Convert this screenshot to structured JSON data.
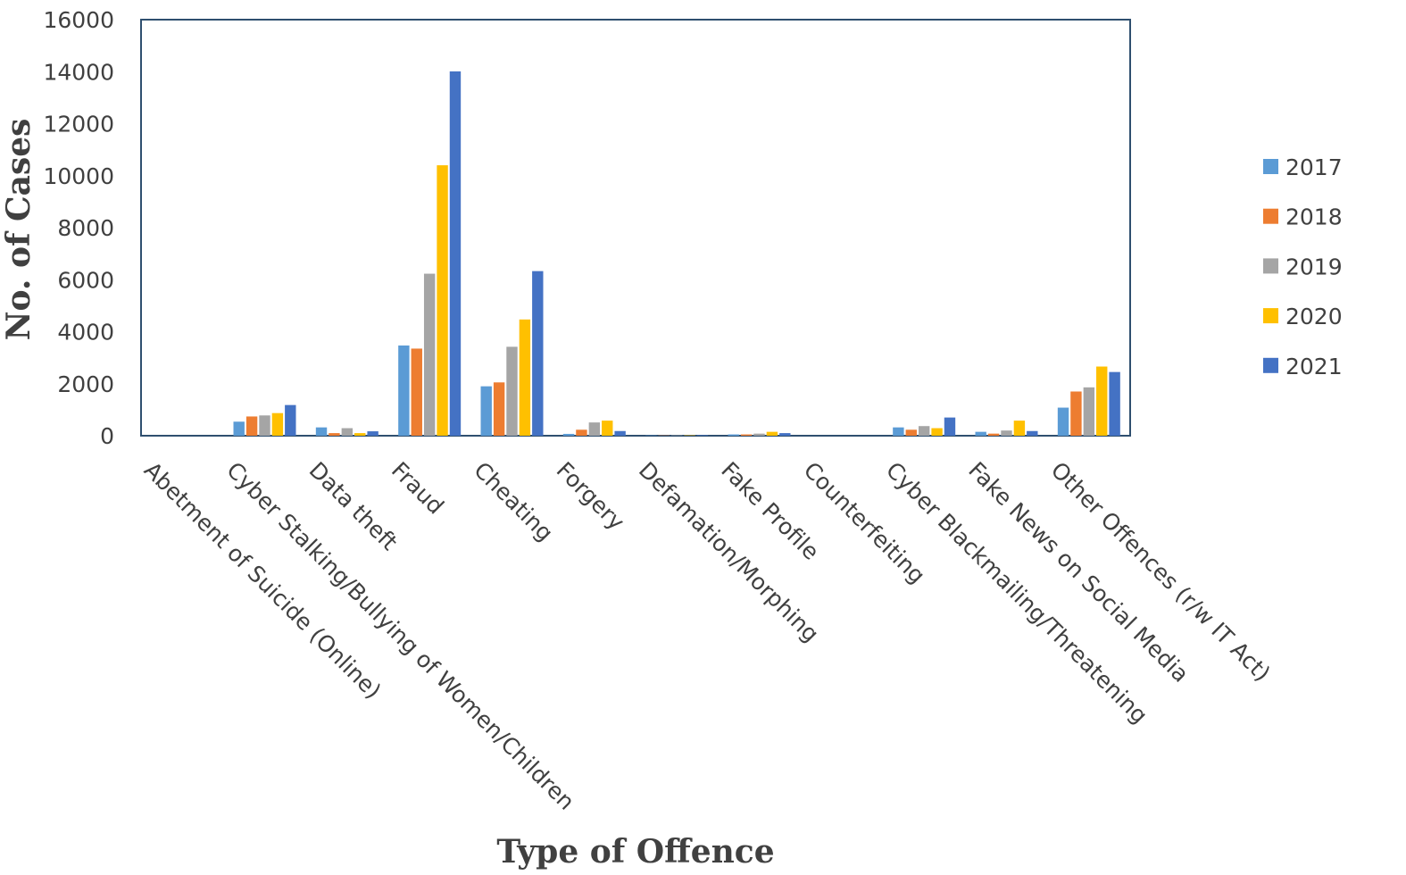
{
  "chart_data": {
    "type": "bar",
    "xlabel": "Type of Offence",
    "ylabel": "No. of Cases",
    "ylim": [
      0,
      16000
    ],
    "yticks": [
      0,
      2000,
      4000,
      6000,
      8000,
      10000,
      12000,
      14000,
      16000
    ],
    "grid": false,
    "legend_position": "right",
    "categories": [
      "Abetment of Suicide (Online)",
      "Cyber Stalking/Bullying of Women/Children",
      "Data theft",
      "Fraud",
      "Cheating",
      "Forgery",
      "Defamation/Morphing",
      "Fake Profile",
      "Counterfeiting",
      "Cyber Blackmailing/Threatening",
      "Fake News on Social Media",
      "Other Offences (r/w IT Act)"
    ],
    "series": [
      {
        "name": "2017",
        "color": "#5b9bd5",
        "values": [
          0,
          540,
          320,
          3470,
          1900,
          70,
          10,
          50,
          0,
          320,
          150,
          1080
        ]
      },
      {
        "name": "2018",
        "color": "#ed7d31",
        "values": [
          0,
          740,
          100,
          3350,
          2050,
          230,
          10,
          50,
          0,
          230,
          80,
          1700
        ]
      },
      {
        "name": "2019",
        "color": "#a5a5a5",
        "values": [
          0,
          780,
          290,
          6230,
          3420,
          510,
          15,
          80,
          0,
          370,
          200,
          1860
        ]
      },
      {
        "name": "2020",
        "color": "#ffc000",
        "values": [
          0,
          870,
          100,
          10400,
          4470,
          580,
          15,
          150,
          0,
          290,
          580,
          2660
        ]
      },
      {
        "name": "2021",
        "color": "#4472c4",
        "values": [
          0,
          1180,
          170,
          14010,
          6330,
          180,
          20,
          100,
          0,
          700,
          180,
          2450
        ]
      }
    ]
  }
}
